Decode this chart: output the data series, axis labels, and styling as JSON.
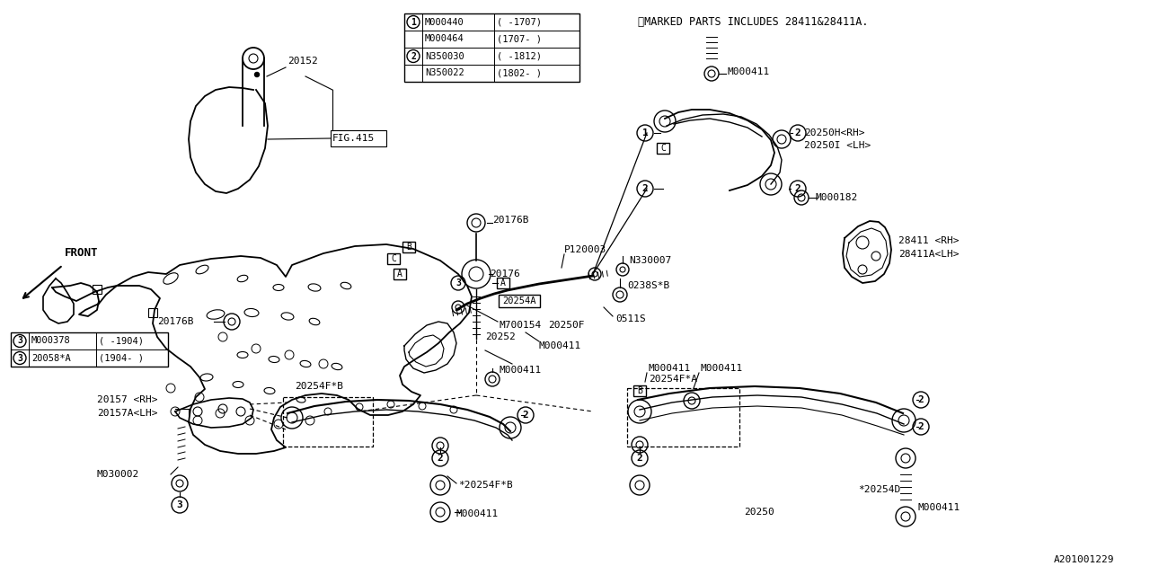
{
  "bg_color": "#ffffff",
  "line_color": "#000000",
  "fig_width": 12.8,
  "fig_height": 6.4,
  "watermark": "A201001229",
  "note": "※MARKED PARTS INCLUDES 28411&28411A.",
  "table_rows": [
    {
      "circle": "1",
      "part": "M000440",
      "range": "( -1707)"
    },
    {
      "circle": "",
      "part": "M000464",
      "range": "(1707- )"
    },
    {
      "circle": "2",
      "part": "N350030",
      "range": "( -1812)"
    },
    {
      "circle": "",
      "part": "N350022",
      "range": "(1802- )"
    }
  ],
  "bottom_table_rows": [
    {
      "circle": "3",
      "part": "M000378",
      "range": "( -1904)"
    },
    {
      "circle": "3",
      "part": "20058*A",
      "range": "(1904- )"
    }
  ]
}
